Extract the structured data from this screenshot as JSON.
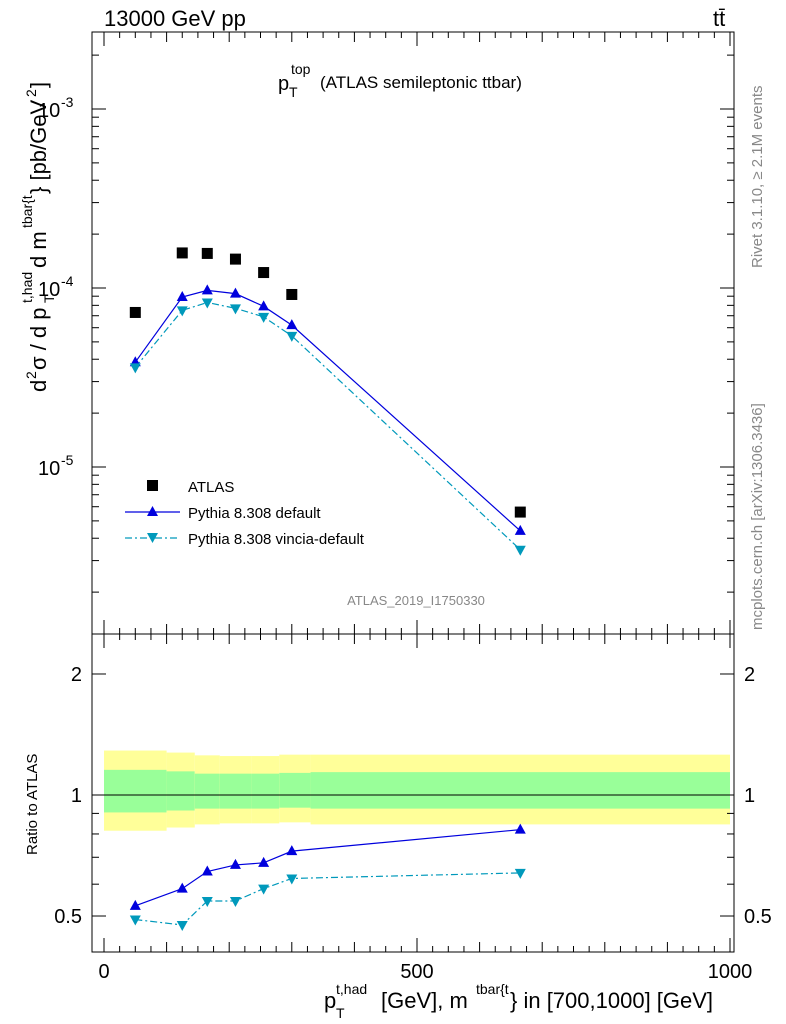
{
  "header": {
    "left_label": "13000 GeV pp",
    "right_label": "tt̄"
  },
  "side_labels": {
    "rivet": "Rivet 3.1.10, ≥ 2.1M events",
    "mcplots": "mcplots.cern.ch [arXiv:1306.3436]"
  },
  "chart_data": [
    {
      "type": "scatter",
      "title": "p_T^top (ATLAS semileptonic ttbar)",
      "analysis_id": "ATLAS_2019_I1750330",
      "ylabel": "d²σ / d p_T^t,had d m^tbar{t} [pb/GeV²]",
      "yscale": "log",
      "xlim": [
        -25,
        1010
      ],
      "ylim": [
        1.5e-06,
        0.0028
      ],
      "legend_position": "lower-left",
      "x": [
        50,
        125,
        165,
        210,
        255,
        300,
        665
      ],
      "series": [
        {
          "name": "ATLAS",
          "marker": "square",
          "color": "#000000",
          "values": [
            7.3e-05,
            0.000157,
            0.000156,
            0.000145,
            0.000122,
            9.2e-05,
            5.6e-06
          ]
        },
        {
          "name": "Pythia 8.308 default",
          "marker": "triangle-up",
          "color": "#0000dd",
          "line": "solid",
          "values": [
            3.85e-05,
            8.9e-05,
            9.7e-05,
            9.3e-05,
            7.9e-05,
            6.2e-05,
            4.4e-06
          ]
        },
        {
          "name": "Pythia 8.308 vincia-default",
          "marker": "triangle-down",
          "color": "#0099bb",
          "line": "dashdot",
          "values": [
            3.6e-05,
            7.5e-05,
            8.3e-05,
            7.7e-05,
            6.9e-05,
            5.4e-05,
            3.45e-06
          ]
        }
      ],
      "ytick_labels": [
        "10⁻⁵",
        "10⁻⁴",
        "10⁻³"
      ]
    },
    {
      "type": "line",
      "ylabel": "Ratio to ATLAS",
      "xlabel": "p_T^t,had [GeV], m^tbar{t} in [700,1000] [GeV]",
      "xlim": [
        -25,
        1010
      ],
      "ylim": [
        0.42,
        2.3
      ],
      "xticks": [
        0,
        500,
        1000
      ],
      "yticks": [
        0.5,
        1,
        2
      ],
      "x": [
        50,
        125,
        165,
        210,
        255,
        300,
        665
      ],
      "bands": {
        "bin_edges": [
          0,
          100,
          145,
          185,
          235,
          280,
          330,
          1000
        ],
        "total_low": [
          0.815,
          0.83,
          0.845,
          0.85,
          0.85,
          0.855,
          0.845
        ],
        "total_high": [
          1.29,
          1.275,
          1.255,
          1.25,
          1.25,
          1.26,
          1.26
        ],
        "inner_low": [
          0.905,
          0.915,
          0.925,
          0.925,
          0.925,
          0.93,
          0.925
        ],
        "inner_high": [
          1.155,
          1.145,
          1.13,
          1.13,
          1.13,
          1.135,
          1.14
        ],
        "total_color": "#ffff99",
        "inner_color": "#99ff99"
      },
      "series": [
        {
          "name": "Pythia 8.308 default",
          "color": "#0000dd",
          "line": "solid",
          "values": [
            0.53,
            0.585,
            0.645,
            0.67,
            0.678,
            0.725,
            0.82
          ]
        },
        {
          "name": "Pythia 8.308 vincia-default",
          "color": "#0099bb",
          "line": "dashdot",
          "values": [
            0.49,
            0.475,
            0.545,
            0.545,
            0.585,
            0.62,
            0.64
          ]
        }
      ]
    }
  ]
}
